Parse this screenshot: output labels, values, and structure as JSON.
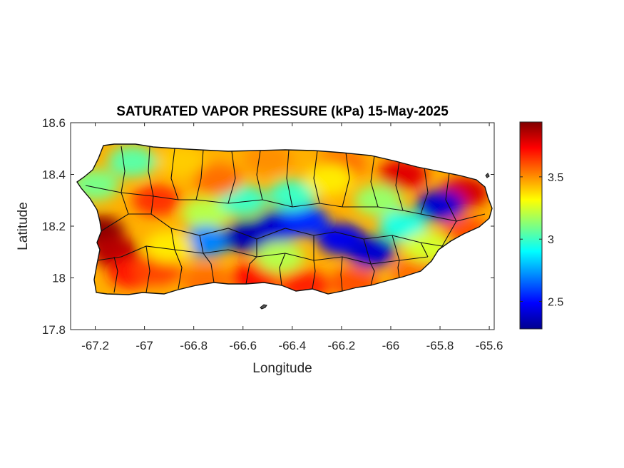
{
  "chart_data": {
    "type": "heatmap",
    "title": "SATURATED VAPOR PRESSURE (kPa) 15-May-2025",
    "xlabel": "Longitude",
    "ylabel": "Latitude",
    "xlim": [
      -67.3,
      -65.58
    ],
    "ylim": [
      17.8,
      18.6
    ],
    "xticks": [
      -67.2,
      -67,
      -66.8,
      -66.6,
      -66.4,
      -66.2,
      -66,
      -65.8,
      -65.6
    ],
    "xtick_labels": [
      "-67.2",
      "-67",
      "-66.8",
      "-66.6",
      "-66.4",
      "-66.2",
      "-66",
      "-65.8",
      "-65.6"
    ],
    "yticks": [
      17.8,
      18,
      18.2,
      18.4,
      18.6
    ],
    "ytick_labels": [
      "17.8",
      "18",
      "18.2",
      "18.4",
      "18.6"
    ],
    "colorbar": {
      "colormap": "jet",
      "range": [
        2.28,
        3.94
      ],
      "ticks": [
        2.5,
        3,
        3.5
      ],
      "tick_labels": [
        "2.5",
        "3",
        "3.5"
      ]
    },
    "grid": false,
    "region": "Puerto Rico",
    "features": [
      {
        "lon": -67.18,
        "lat": 18.18,
        "value": 3.92
      },
      {
        "lon": -67.12,
        "lat": 18.1,
        "value": 3.85
      },
      {
        "lon": -67.05,
        "lat": 18.02,
        "value": 3.7
      },
      {
        "lon": -66.95,
        "lat": 18.03,
        "value": 3.62
      },
      {
        "lon": -66.75,
        "lat": 17.99,
        "value": 3.55
      },
      {
        "lon": -66.55,
        "lat": 18.0,
        "value": 3.72
      },
      {
        "lon": -66.35,
        "lat": 17.97,
        "value": 3.68
      },
      {
        "lon": -66.15,
        "lat": 17.98,
        "value": 3.6
      },
      {
        "lon": -65.9,
        "lat": 18.02,
        "value": 3.55
      },
      {
        "lon": -65.7,
        "lat": 18.18,
        "value": 3.6
      },
      {
        "lon": -65.7,
        "lat": 18.33,
        "value": 3.8
      },
      {
        "lon": -65.95,
        "lat": 18.4,
        "value": 3.78
      },
      {
        "lon": -66.2,
        "lat": 18.44,
        "value": 3.55
      },
      {
        "lon": -66.5,
        "lat": 18.46,
        "value": 3.5
      },
      {
        "lon": -66.85,
        "lat": 18.45,
        "value": 3.4
      },
      {
        "lon": -67.05,
        "lat": 18.45,
        "value": 3.05
      },
      {
        "lon": -67.2,
        "lat": 18.36,
        "value": 3.1
      },
      {
        "lon": -66.95,
        "lat": 18.3,
        "value": 3.65
      },
      {
        "lon": -66.75,
        "lat": 18.25,
        "value": 3.2
      },
      {
        "lon": -66.75,
        "lat": 18.14,
        "value": 2.7
      },
      {
        "lon": -66.58,
        "lat": 18.16,
        "value": 2.35
      },
      {
        "lon": -66.45,
        "lat": 18.2,
        "value": 2.4
      },
      {
        "lon": -66.35,
        "lat": 18.22,
        "value": 2.55
      },
      {
        "lon": -66.2,
        "lat": 18.15,
        "value": 2.45
      },
      {
        "lon": -66.08,
        "lat": 18.1,
        "value": 2.4
      },
      {
        "lon": -65.95,
        "lat": 18.2,
        "value": 2.95
      },
      {
        "lon": -65.8,
        "lat": 18.28,
        "value": 2.4
      },
      {
        "lon": -66.6,
        "lat": 18.3,
        "value": 3.0
      },
      {
        "lon": -66.4,
        "lat": 18.32,
        "value": 3.0
      },
      {
        "lon": -66.05,
        "lat": 18.3,
        "value": 3.15
      },
      {
        "lon": -66.45,
        "lat": 18.08,
        "value": 3.2
      },
      {
        "lon": -66.9,
        "lat": 18.12,
        "value": 3.35
      },
      {
        "lon": -66.25,
        "lat": 18.38,
        "value": 3.35
      },
      {
        "lon": -66.7,
        "lat": 18.38,
        "value": 3.55
      },
      {
        "lon": -65.85,
        "lat": 18.12,
        "value": 3.25
      }
    ]
  }
}
